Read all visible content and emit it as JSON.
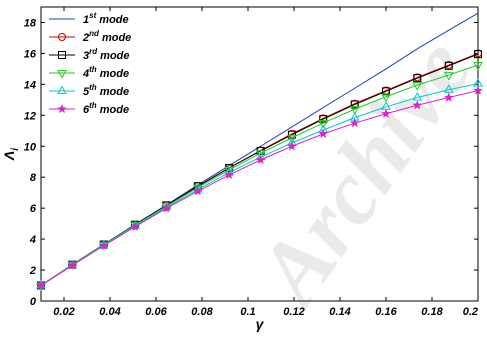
{
  "chart_data": {
    "type": "line",
    "xlabel": "γ",
    "ylabel": "Λ",
    "ylabel_subscript": "i",
    "xlim": [
      0.01,
      0.2
    ],
    "ylim": [
      0,
      19
    ],
    "x_ticks": [
      0.02,
      0.04,
      0.06,
      0.08,
      0.1,
      0.12,
      0.14,
      0.16,
      0.18,
      0.2
    ],
    "x_tick_labels": [
      "0.02",
      "0.04",
      "0.06",
      "0.08",
      "0.1",
      "0.12",
      "0.14",
      "0.16",
      "0.18",
      "0.2"
    ],
    "y_ticks": [
      0,
      2,
      4,
      6,
      8,
      10,
      12,
      14,
      16,
      18
    ],
    "y_tick_labels": [
      "0",
      "2",
      "4",
      "6",
      "8",
      "10",
      "12",
      "14",
      "16",
      "18"
    ],
    "legend_position": "top-left",
    "watermark": "Archive",
    "x": [
      0.01,
      0.0236,
      0.0373,
      0.0509,
      0.0645,
      0.0782,
      0.0918,
      0.1055,
      0.1191,
      0.1327,
      0.1464,
      0.16,
      0.1736,
      0.1873,
      0.2
    ],
    "series": [
      {
        "name": "1",
        "sup": "st",
        "suffix": " mode",
        "color": "#1f3fbf",
        "marker": "none",
        "values": [
          1.0,
          2.35,
          3.65,
          4.95,
          6.2,
          7.5,
          8.75,
          10.0,
          11.25,
          12.5,
          13.75,
          15.0,
          16.3,
          17.5,
          18.6
        ]
      },
      {
        "name": "2",
        "sup": "nd",
        "suffix": " mode",
        "color": "#cc0000",
        "marker": "circle",
        "values": [
          1.0,
          2.35,
          3.65,
          4.93,
          6.18,
          7.42,
          8.6,
          9.72,
          10.8,
          11.8,
          12.75,
          13.6,
          14.45,
          15.25,
          16.0
        ]
      },
      {
        "name": "3",
        "sup": "rd",
        "suffix": " mode",
        "color": "#000000",
        "marker": "square",
        "values": [
          1.0,
          2.35,
          3.65,
          4.93,
          6.18,
          7.42,
          8.6,
          9.7,
          10.75,
          11.75,
          12.7,
          13.55,
          14.4,
          15.2,
          15.95
        ]
      },
      {
        "name": "4",
        "sup": "th",
        "suffix": " mode",
        "color": "#22cc22",
        "marker": "triangle-down",
        "values": [
          1.0,
          2.35,
          3.63,
          4.9,
          6.12,
          7.33,
          8.48,
          9.55,
          10.55,
          11.5,
          12.4,
          13.2,
          13.95,
          14.6,
          15.25
        ]
      },
      {
        "name": "5",
        "sup": "th",
        "suffix": " mode",
        "color": "#00cccc",
        "marker": "triangle-up",
        "values": [
          1.0,
          2.32,
          3.6,
          4.85,
          6.05,
          7.2,
          8.3,
          9.3,
          10.22,
          11.05,
          11.85,
          12.55,
          13.15,
          13.65,
          14.05
        ]
      },
      {
        "name": "6",
        "sup": "th",
        "suffix": " mode",
        "color": "#dd22cc",
        "marker": "star",
        "values": [
          1.0,
          2.3,
          3.57,
          4.8,
          5.98,
          7.1,
          8.15,
          9.12,
          10.0,
          10.8,
          11.5,
          12.1,
          12.65,
          13.15,
          13.6
        ]
      }
    ]
  }
}
